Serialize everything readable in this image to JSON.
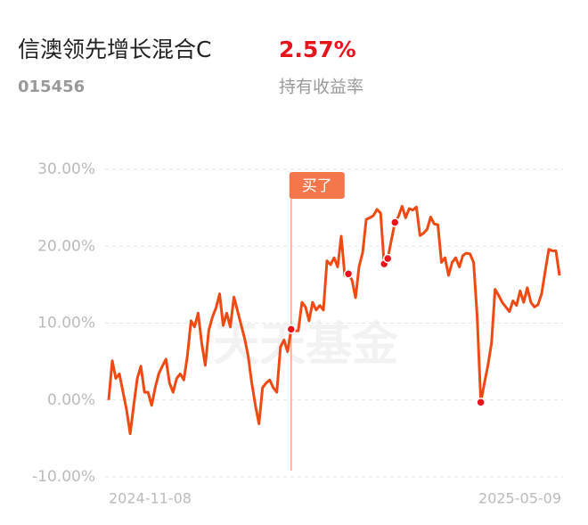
{
  "header": {
    "title": "信澳领先增长混合C",
    "return_value": "2.57%",
    "code": "015456",
    "return_label": "持有收益率"
  },
  "chart_data": {
    "type": "line",
    "annotation": "买了",
    "watermark": "天天基金",
    "categories": [
      "2024-11-08",
      null,
      null,
      null,
      null,
      null,
      null,
      null,
      null,
      null,
      null,
      null,
      null,
      null,
      null,
      null,
      null,
      null,
      null,
      null,
      null,
      null,
      null,
      null,
      null,
      null,
      null,
      null,
      null,
      null,
      null,
      null,
      null,
      null,
      null,
      null,
      null,
      null,
      null,
      null,
      null,
      null,
      null,
      null,
      null,
      null,
      null,
      null,
      null,
      null,
      null,
      null,
      null,
      null,
      null,
      null,
      null,
      null,
      null,
      null,
      null,
      null,
      null,
      null,
      null,
      null,
      null,
      null,
      null,
      null,
      null,
      null,
      null,
      null,
      null,
      null,
      null,
      null,
      null,
      null,
      null,
      null,
      null,
      null,
      null,
      null,
      null,
      null,
      null,
      null,
      null,
      null,
      null,
      null,
      null,
      null,
      null,
      null,
      null,
      null,
      null,
      null,
      null,
      null,
      null,
      null,
      null,
      null,
      null,
      null,
      null,
      null,
      null,
      null,
      null,
      null,
      null,
      null,
      null,
      null,
      null,
      null,
      null,
      null,
      null,
      null,
      "2025-05-09"
    ],
    "series": [
      {
        "color": "#f04a12",
        "values": [
          0,
          5.1,
          2.8,
          3.4,
          1.0,
          -1.3,
          -4.4,
          -0.7,
          2.8,
          4.4,
          1.0,
          1.0,
          -0.7,
          1.6,
          3.4,
          4.4,
          5.3,
          2.2,
          1.0,
          2.8,
          3.4,
          2.6,
          5.7,
          10.3,
          9.5,
          11.3,
          7.4,
          4.5,
          9.1,
          10.8,
          12.0,
          13.8,
          9.7,
          11.3,
          9.5,
          13.4,
          11.6,
          9.8,
          8.0,
          5.7,
          2.2,
          -0.7,
          -3.1,
          1.6,
          2.2,
          2.6,
          1.6,
          1.0,
          6.9,
          7.8,
          6.3,
          9.2,
          9.0,
          9.0,
          12.7,
          12.1,
          10.3,
          12.7,
          11.7,
          12.3,
          11.7,
          18.1,
          17.6,
          18.5,
          17.3,
          21.3,
          16.2,
          16.4,
          15.6,
          13.3,
          17.4,
          19.2,
          23.5,
          23.7,
          24.0,
          24.8,
          24.3,
          17.7,
          18.4,
          20.8,
          23.1,
          23.9,
          25.2,
          23.7,
          24.9,
          24.7,
          25.1,
          21.4,
          21.7,
          22.2,
          23.8,
          22.9,
          22.8,
          17.9,
          18.5,
          16.2,
          17.9,
          18.5,
          17.3,
          18.8,
          19.1,
          19.0,
          17.9,
          10.9,
          -0.3,
          2.2,
          4.5,
          7.4,
          14.4,
          13.6,
          12.7,
          12.1,
          11.5,
          12.9,
          12.3,
          14.2,
          12.7,
          14.6,
          12.7,
          12.1,
          12.4,
          13.8,
          16.7,
          19.6,
          19.4,
          19.4,
          16.2
        ]
      }
    ],
    "trades": [
      51,
      67,
      77,
      78,
      80,
      104
    ],
    "ylim": [
      -10,
      30
    ],
    "yticks": [
      {
        "value": 30,
        "label": "30.00%"
      },
      {
        "value": 20,
        "label": "20.00%"
      },
      {
        "value": 10,
        "label": "10.00%"
      },
      {
        "value": 0,
        "label": "0.00%"
      },
      {
        "value": -10,
        "label": "-10.00%"
      }
    ],
    "grid": true
  }
}
